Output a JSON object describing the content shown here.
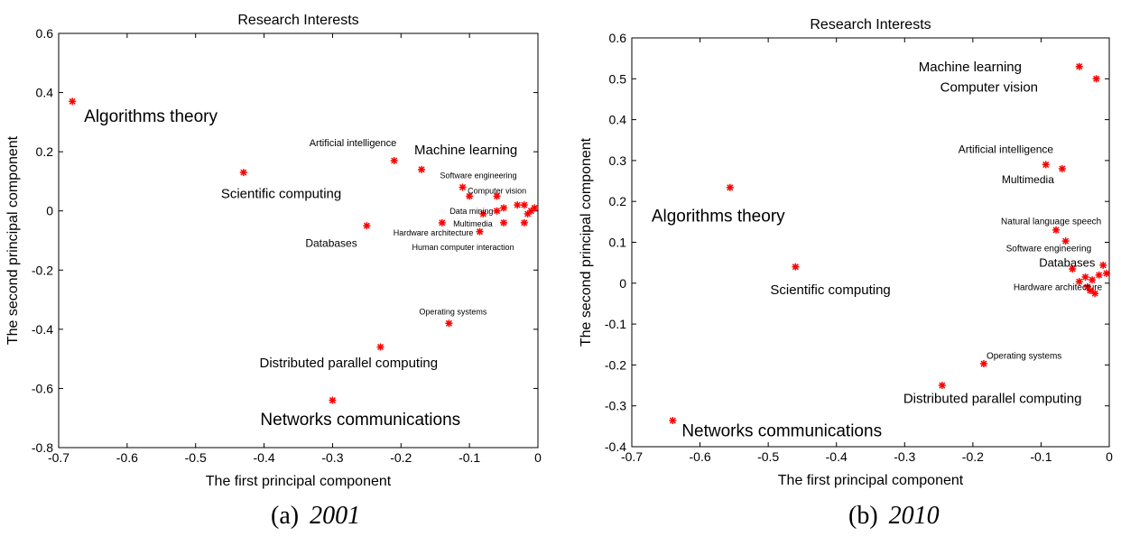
{
  "chart_data": [
    {
      "type": "scatter",
      "title": "Research Interests",
      "xlabel": "The first principal component",
      "ylabel": "The second principal component",
      "caption_tag": "(a)",
      "caption_year": "2001",
      "color": "#ff0000",
      "x": [
        -0.68,
        -0.43,
        -0.25,
        -0.21,
        -0.17,
        -0.11,
        -0.1,
        -0.08,
        -0.14,
        -0.05,
        -0.085,
        -0.13,
        -0.23,
        -0.3,
        -0.06,
        -0.05,
        -0.03,
        -0.02,
        -0.015,
        -0.01,
        -0.02,
        -0.005,
        -0.06
      ],
      "y": [
        0.37,
        0.13,
        -0.05,
        0.17,
        0.14,
        0.08,
        0.05,
        -0.01,
        -0.04,
        -0.04,
        -0.07,
        -0.38,
        -0.46,
        -0.64,
        0.05,
        0.01,
        0.02,
        0.02,
        -0.01,
        0.0,
        -0.04,
        0.01,
        0.0
      ],
      "labels": [
        "Algorithms theory",
        "Scientific computing",
        "Databases",
        "Artificial intelligence",
        "Machine learning",
        "Software engineering",
        "Computer vision",
        "Data mining",
        "Hardware architecture",
        "Multimedia",
        "Human computer interaction",
        "Operating systems",
        "Distributed parallel computing",
        "Networks communications",
        null,
        null,
        null,
        null,
        null,
        null,
        null,
        null,
        null
      ],
      "xlim": [
        -0.7,
        0
      ],
      "ylim": [
        -0.8,
        0.6
      ],
      "xticks": [
        -0.7,
        -0.6,
        -0.5,
        -0.4,
        -0.3,
        -0.2,
        -0.1,
        0
      ],
      "yticks": [
        -0.8,
        -0.6,
        -0.4,
        -0.2,
        0,
        0.2,
        0.4,
        0.6
      ]
    },
    {
      "type": "scatter",
      "title": "Research Interests",
      "xlabel": "The first principal component",
      "ylabel": "The second principal component",
      "caption_tag": "(b)",
      "caption_year": "2010",
      "color": "#ff0000",
      "x": [
        -0.044,
        -0.019,
        -0.093,
        -0.069,
        -0.556,
        -0.46,
        -0.078,
        -0.064,
        -0.054,
        -0.032,
        -0.184,
        -0.245,
        -0.64,
        -0.009,
        -0.004,
        -0.025,
        -0.021,
        -0.028,
        -0.044,
        -0.015,
        -0.035
      ],
      "y": [
        0.53,
        0.5,
        0.29,
        0.28,
        0.234,
        0.04,
        0.13,
        0.103,
        0.035,
        -0.009,
        -0.197,
        -0.25,
        -0.336,
        0.044,
        0.024,
        0.008,
        -0.025,
        -0.018,
        0.004,
        0.02,
        0.015
      ],
      "labels": [
        "Machine learning",
        "Computer vision",
        "Artificial intelligence",
        "Multimedia",
        "Algorithms theory",
        "Scientific computing",
        "Natural language speech",
        "Software engineering",
        "Databases",
        "Hardware architecture",
        "Operating systems",
        "Distributed parallel computing",
        "Networks communications",
        null,
        null,
        null,
        null,
        null,
        null,
        null,
        null
      ],
      "xlim": [
        -0.7,
        0
      ],
      "ylim": [
        -0.4,
        0.6
      ],
      "xticks": [
        -0.7,
        -0.6,
        -0.5,
        -0.4,
        -0.3,
        -0.2,
        -0.1,
        0
      ],
      "yticks": [
        -0.4,
        -0.3,
        -0.2,
        -0.1,
        0,
        0.1,
        0.2,
        0.3,
        0.4,
        0.5,
        0.6
      ]
    }
  ]
}
